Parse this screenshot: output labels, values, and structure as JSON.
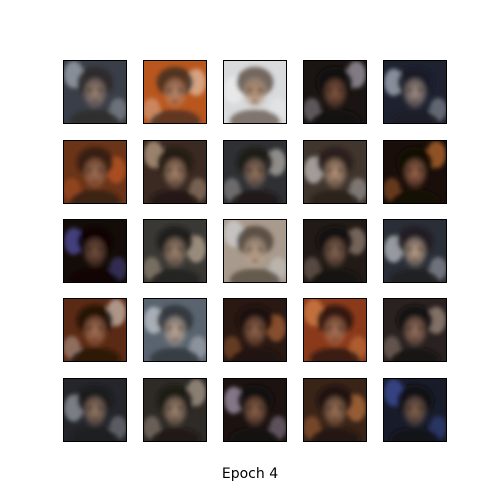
{
  "figure": {
    "caption": "Epoch 4",
    "grid": {
      "rows": 5,
      "cols": 5
    }
  },
  "samples": [
    {
      "bg": "#3a3e48",
      "face": "#a08878",
      "accent": "#c9d0d8",
      "hair": "#2a2624"
    },
    {
      "bg": "#b8561e",
      "face": "#c08c6e",
      "accent": "#f0e0d0",
      "hair": "#3a2a22"
    },
    {
      "bg": "#d8dadc",
      "face": "#b89478",
      "accent": "#f4f4f4",
      "hair": "#5a4a3e"
    },
    {
      "bg": "#1a1412",
      "face": "#8a5a44",
      "accent": "#d8d0e0",
      "hair": "#100c0a"
    },
    {
      "bg": "#1e2230",
      "face": "#a89488",
      "accent": "#dfe6f2",
      "hair": "#1a1c24"
    },
    {
      "bg": "#6a3418",
      "face": "#a87458",
      "accent": "#d8622a",
      "hair": "#2a1a12"
    },
    {
      "bg": "#3a2a22",
      "face": "#b08c72",
      "accent": "#e8c8a8",
      "hair": "#20160e"
    },
    {
      "bg": "#2e3034",
      "face": "#9a7a64",
      "accent": "#e0d8d0",
      "hair": "#1a1614"
    },
    {
      "bg": "#40362e",
      "face": "#c09c80",
      "accent": "#f2eef0",
      "hair": "#241c16"
    },
    {
      "bg": "#1a0e0a",
      "face": "#a06a4e",
      "accent": "#f08a3a",
      "hair": "#120a08"
    },
    {
      "bg": "#140c08",
      "face": "#7a5442",
      "accent": "#6a6ad8",
      "hair": "#0c0806"
    },
    {
      "bg": "#3a3834",
      "face": "#a88a74",
      "accent": "#e8d0b8",
      "hair": "#1c1a18"
    },
    {
      "bg": "#a89a8c",
      "face": "#c0a48e",
      "accent": "#dde4ec",
      "hair": "#4a3e34"
    },
    {
      "bg": "#221a16",
      "face": "#8c6a56",
      "accent": "#b8a090",
      "hair": "#140e0c"
    },
    {
      "bg": "#2a2e36",
      "face": "#c4a890",
      "accent": "#eef2f8",
      "hair": "#1e1c1e"
    },
    {
      "bg": "#5a2a14",
      "face": "#b0785a",
      "accent": "#f4ece6",
      "hair": "#1a0c08"
    },
    {
      "bg": "#5a6470",
      "face": "#c8b09c",
      "accent": "#e8ecf0",
      "hair": "#2a2e34"
    },
    {
      "bg": "#2a1812",
      "face": "#9a6a50",
      "accent": "#d07a44",
      "hair": "#180e0a"
    },
    {
      "bg": "#8a3a1a",
      "face": "#b07a5c",
      "accent": "#f09a5a",
      "hair": "#20120c"
    },
    {
      "bg": "#2a2220",
      "face": "#a07864",
      "accent": "#c8b0a0",
      "hair": "#0e0a0a"
    },
    {
      "bg": "#24262c",
      "face": "#9c7e68",
      "accent": "#c0c4cc",
      "hair": "#18181c"
    },
    {
      "bg": "#2e2a26",
      "face": "#a88c76",
      "accent": "#d6c4b2",
      "hair": "#1a1614"
    },
    {
      "bg": "#1c1210",
      "face": "#94684e",
      "accent": "#d8c8e8",
      "hair": "#120c0a"
    },
    {
      "bg": "#3a2418",
      "face": "#a47a5e",
      "accent": "#e08a4a",
      "hair": "#1a120c"
    },
    {
      "bg": "#181c2a",
      "face": "#8a6852",
      "accent": "#4a62c8",
      "hair": "#0e0c12"
    }
  ]
}
